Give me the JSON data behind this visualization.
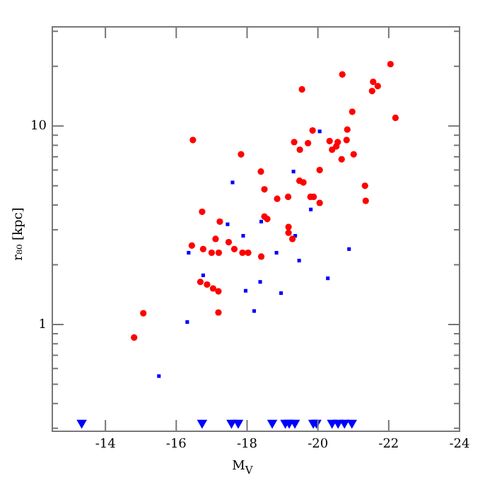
{
  "chart_data": {
    "type": "scatter",
    "xlabel": "M$_{V}$",
    "ylabel": "r₈₀ [kpc]",
    "log": "y",
    "grid": false,
    "xlim": [
      -12.5,
      -24
    ],
    "xticks": [
      -14,
      -16,
      -18,
      -20,
      -22,
      -24
    ],
    "ylim": [
      0.29,
      31.6
    ],
    "yticks": [
      {
        "value": 0.3,
        "label": null
      },
      {
        "value": 0.4,
        "label": null
      },
      {
        "value": 0.5,
        "label": null
      },
      {
        "value": 0.6,
        "label": null
      },
      {
        "value": 0.7,
        "label": null
      },
      {
        "value": 0.8,
        "label": null
      },
      {
        "value": 0.9,
        "label": null
      },
      1,
      {
        "value": 2,
        "label": null
      },
      {
        "value": 3,
        "label": null
      },
      {
        "value": 4,
        "label": null
      },
      {
        "value": 5,
        "label": null
      },
      {
        "value": 6,
        "label": null
      },
      {
        "value": 7,
        "label": null
      },
      {
        "value": 8,
        "label": null
      },
      {
        "value": 9,
        "label": null
      },
      10,
      {
        "value": 20,
        "label": null
      },
      {
        "value": 30,
        "label": null
      }
    ],
    "series": [
      {
        "color": "#ff0000",
        "marker": "circle",
        "x": [
          -16.47,
          -20.69,
          -19.55,
          -22.05,
          -21.56,
          -21.69,
          -21.53,
          -20.97,
          -22.19,
          -19.85,
          -20.83,
          -19.33,
          -19.72,
          -20.33,
          -20.56,
          -20.4,
          -20.52,
          -20.81,
          -19.49,
          -20.67,
          -21.01,
          -17.83,
          -18.39,
          -20.05,
          -19.48,
          -19.59,
          -21.33,
          -18.49,
          -19.79,
          -19.88,
          -18.85,
          -20.05,
          -16.73,
          -18.57,
          -19.17,
          -19.17,
          -17.48,
          -16.76,
          -17.64,
          -17.87,
          -18.4
        ],
        "values": [
          8.5,
          18.2,
          15.3,
          20.5,
          16.7,
          15.9,
          15.0,
          11.8,
          11.0,
          9.5,
          9.6,
          8.3,
          8.2,
          8.4,
          8.3,
          7.6,
          7.9,
          8.5,
          7.6,
          6.8,
          7.2,
          7.2,
          5.9,
          6.0,
          5.3,
          5.2,
          5.0,
          4.8,
          4.4,
          4.4,
          4.3,
          4.1,
          3.7,
          3.4,
          3.1,
          2.9,
          2.6,
          2.4,
          2.4,
          2.3,
          2.2
        ]
      },
      {
        "color": "#ff0000",
        "marker": "circle",
        "x": [
          -14.81,
          -15.07,
          -16.44,
          -17.23,
          -17.11,
          -17.0,
          -17.2,
          -18.03,
          -19.16,
          -18.49,
          -19.28,
          -21.35,
          -16.68,
          -16.87,
          -17.04,
          -17.19,
          -17.19
        ],
        "values": [
          0.86,
          1.14,
          2.5,
          3.3,
          2.7,
          2.3,
          2.3,
          2.3,
          4.4,
          3.5,
          2.7,
          4.2,
          1.64,
          1.59,
          1.52,
          1.47,
          1.15
        ]
      },
      {
        "color": "#0000ff",
        "marker": "square",
        "x": [
          -15.51,
          -16.31,
          -16.35,
          -16.76,
          -17.59,
          -17.45,
          -17.89,
          -18.4,
          -17.96,
          -18.37,
          -18.2,
          -18.83,
          -18.96,
          -19.31,
          -19.36,
          -19.47,
          -19.8,
          -20.05,
          -20.28,
          -20.88
        ],
        "values": [
          0.55,
          1.03,
          2.3,
          1.77,
          5.2,
          3.2,
          2.8,
          3.3,
          1.48,
          1.64,
          1.17,
          2.3,
          1.44,
          5.9,
          2.8,
          2.1,
          3.8,
          9.4,
          1.71,
          2.4
        ]
      },
      {
        "color": "#0000ff",
        "marker": "triangle",
        "x": [
          -13.33,
          -16.73,
          -17.56,
          -17.75,
          -18.71,
          -19.08,
          -19.19,
          -19.35,
          -19.87,
          -19.96,
          -20.4,
          -20.57,
          -20.75,
          -20.96
        ],
        "values": [
          0.32,
          0.32,
          0.32,
          0.32,
          0.32,
          0.32,
          0.32,
          0.32,
          0.32,
          0.32,
          0.32,
          0.32,
          0.32,
          0.32
        ]
      }
    ]
  }
}
